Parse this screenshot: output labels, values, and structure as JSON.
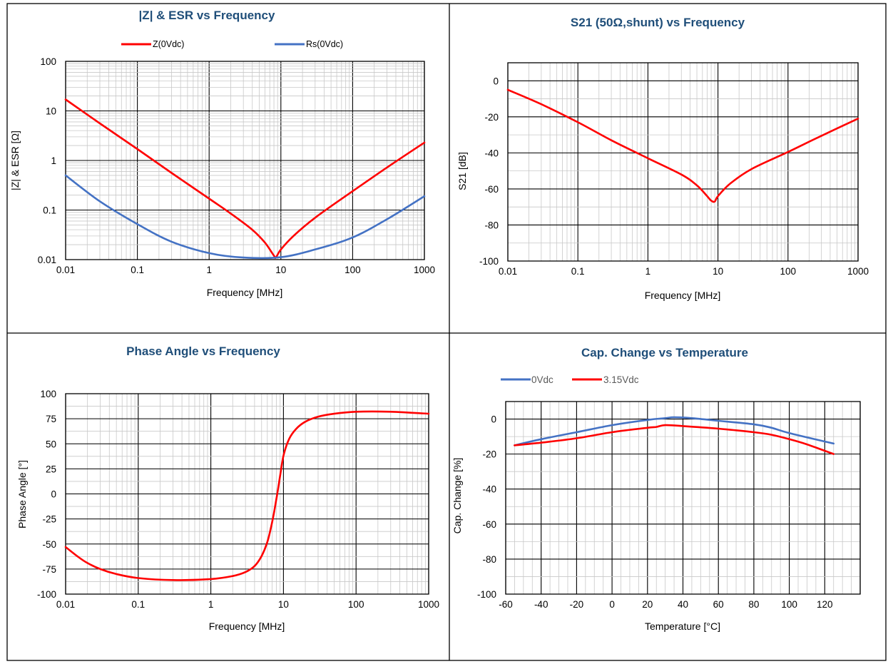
{
  "colors": {
    "red": "#ff0000",
    "blue": "#4472c4",
    "title": "#1f4e79",
    "frame": "#000000"
  },
  "chart_data": [
    {
      "type": "line",
      "title": "|Z| & ESR vs Frequency",
      "xlabel": "Frequency [MHz]",
      "ylabel": "|Z| & ESR [Ω]",
      "xscale": "log",
      "yscale": "log",
      "xlim": [
        0.01,
        1000
      ],
      "ylim": [
        0.01,
        100
      ],
      "xticks": [
        "0.01",
        "0.1",
        "1",
        "10",
        "100",
        "1000"
      ],
      "yticks": [
        "100",
        "10",
        "1",
        "0.1",
        "0.01"
      ],
      "grid": true,
      "legend_position": "top",
      "series": [
        {
          "name": "Z(0Vdc)",
          "color": "#ff0000",
          "x": [
            0.01,
            0.03,
            0.1,
            0.3,
            1,
            2,
            4,
            6,
            8,
            8.5,
            10,
            15,
            30,
            100,
            300,
            1000
          ],
          "y": [
            17,
            5.6,
            1.7,
            0.56,
            0.17,
            0.085,
            0.04,
            0.022,
            0.012,
            0.011,
            0.016,
            0.03,
            0.07,
            0.24,
            0.72,
            2.3
          ]
        },
        {
          "name": "Rs(0Vdc)",
          "color": "#4472c4",
          "x": [
            0.01,
            0.03,
            0.1,
            0.3,
            1,
            3,
            10,
            30,
            100,
            300,
            1000
          ],
          "y": [
            0.5,
            0.15,
            0.052,
            0.023,
            0.0135,
            0.011,
            0.0112,
            0.016,
            0.028,
            0.065,
            0.19
          ]
        }
      ]
    },
    {
      "type": "line",
      "title": "S21 (50Ω,shunt) vs Frequency",
      "xlabel": "Frequency [MHz]",
      "ylabel": "S21 [dB]",
      "xscale": "log",
      "xlim": [
        0.01,
        1000
      ],
      "ylim": [
        -100,
        10
      ],
      "xticks": [
        "0.01",
        "0.1",
        "1",
        "10",
        "100",
        "1000"
      ],
      "yticks": [
        "0",
        "-20",
        "-40",
        "-60",
        "-80",
        "-100"
      ],
      "grid": true,
      "series": [
        {
          "color": "#ff0000",
          "x": [
            0.01,
            0.03,
            0.1,
            0.3,
            1,
            3,
            5,
            7,
            8,
            9,
            10,
            15,
            30,
            100,
            300,
            1000
          ],
          "y": [
            -5,
            -13,
            -23,
            -33,
            -43,
            -52,
            -58,
            -64,
            -66.5,
            -67,
            -64,
            -57,
            -49,
            -39.5,
            -30.5,
            -21
          ]
        }
      ]
    },
    {
      "type": "line",
      "title": "Phase Angle vs Frequency",
      "xlabel": "Frequency [MHz]",
      "ylabel": "Phase Angle [°]",
      "xscale": "log",
      "xlim": [
        0.01,
        1000
      ],
      "ylim": [
        -100,
        100
      ],
      "xticks": [
        "0.01",
        "0.1",
        "1",
        "10",
        "100",
        "1000"
      ],
      "yticks": [
        "100",
        "75",
        "50",
        "25",
        "0",
        "-25",
        "-50",
        "-75",
        "-100"
      ],
      "grid": true,
      "series": [
        {
          "color": "#ff0000",
          "x": [
            0.01,
            0.015,
            0.02,
            0.03,
            0.05,
            0.1,
            0.3,
            1,
            2,
            3,
            4,
            5,
            6,
            7,
            8,
            9,
            10,
            12,
            15,
            20,
            30,
            50,
            100,
            300,
            1000
          ],
          "y": [
            -53,
            -63,
            -69,
            -75,
            -80,
            -84,
            -86,
            -85,
            -82,
            -78,
            -72,
            -62,
            -48,
            -28,
            -5,
            18,
            38,
            55,
            65,
            72,
            77,
            80,
            82,
            82,
            80
          ]
        }
      ]
    },
    {
      "type": "line",
      "title": "Cap. Change vs Temperature",
      "xlabel": "Temperature [°C]",
      "ylabel": "Cap. Change [%]",
      "xlim": [
        -60,
        140
      ],
      "ylim": [
        -100,
        10
      ],
      "xticks": [
        "-60",
        "-40",
        "-20",
        "0",
        "20",
        "40",
        "60",
        "80",
        "100",
        "120"
      ],
      "yticks": [
        "0",
        "-20",
        "-40",
        "-60",
        "-80",
        "-100"
      ],
      "grid": true,
      "legend_position": "top-left",
      "series": [
        {
          "name": "0Vdc",
          "color": "#4472c4",
          "x": [
            -55,
            -40,
            -20,
            0,
            20,
            30,
            35,
            45,
            60,
            80,
            90,
            100,
            125
          ],
          "y": [
            -15,
            -11.5,
            -7.5,
            -3.5,
            -0.5,
            0.5,
            1,
            0.5,
            -1,
            -3,
            -5,
            -8,
            -14
          ]
        },
        {
          "name": "3.15Vdc",
          "color": "#ff0000",
          "x": [
            -55,
            -40,
            -20,
            0,
            20,
            25,
            30,
            40,
            60,
            80,
            90,
            100,
            110,
            125
          ],
          "y": [
            -15,
            -13.5,
            -11,
            -7.5,
            -5,
            -4.5,
            -3.5,
            -4,
            -5.5,
            -7.5,
            -9,
            -11.5,
            -14.5,
            -20
          ]
        }
      ]
    }
  ]
}
